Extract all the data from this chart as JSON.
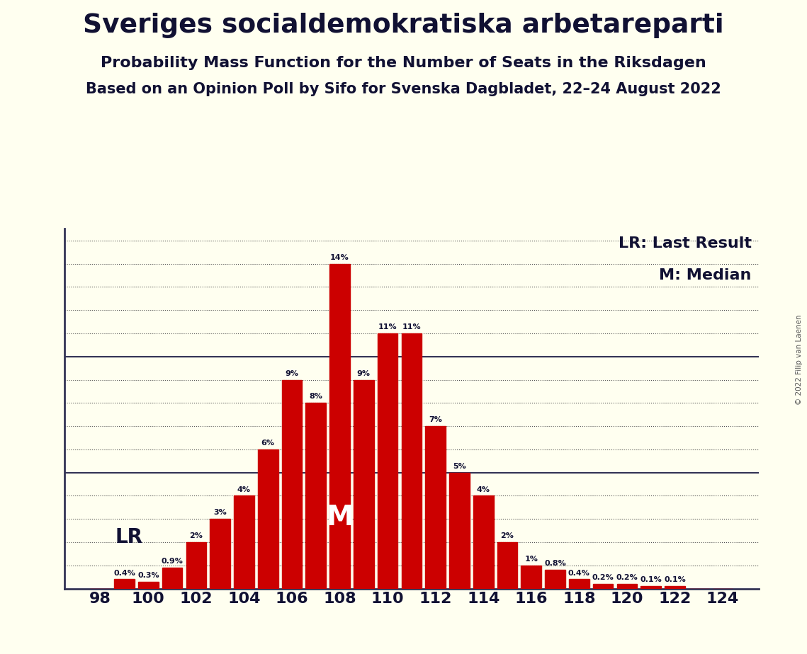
{
  "title": "Sveriges socialdemokratiska arbetareparti",
  "subtitle1": "Probability Mass Function for the Number of Seats in the Riksdagen",
  "subtitle2": "Based on an Opinion Poll by Sifo for Svenska Dagbladet, 22–24 August 2022",
  "copyright": "© 2022 Filip van Laenen",
  "seats": [
    98,
    99,
    100,
    101,
    102,
    103,
    104,
    105,
    106,
    107,
    108,
    109,
    110,
    111,
    112,
    113,
    114,
    115,
    116,
    117,
    118,
    119,
    120,
    121,
    122,
    123,
    124
  ],
  "probabilities": [
    0.0,
    0.4,
    0.3,
    0.9,
    2.0,
    3.0,
    4.0,
    6.0,
    9.0,
    8.0,
    14.0,
    9.0,
    11.0,
    11.0,
    7.0,
    5.0,
    4.0,
    2.0,
    1.0,
    0.8,
    0.4,
    0.2,
    0.2,
    0.1,
    0.1,
    0.0,
    0.0
  ],
  "bar_color": "#cc0000",
  "background_color": "#fffff0",
  "text_color": "#111133",
  "lr_seat": 101,
  "median_seat": 108,
  "ylim": [
    0,
    15.5
  ],
  "solid_yticks": [
    5.0,
    10.0
  ],
  "dotted_yticks": [
    1,
    2,
    3,
    4,
    6,
    7,
    8,
    9,
    11,
    12,
    13,
    14,
    15
  ],
  "legend_lr": "LR: Last Result",
  "legend_m": "M: Median",
  "lr_label": "LR",
  "m_label": "M"
}
